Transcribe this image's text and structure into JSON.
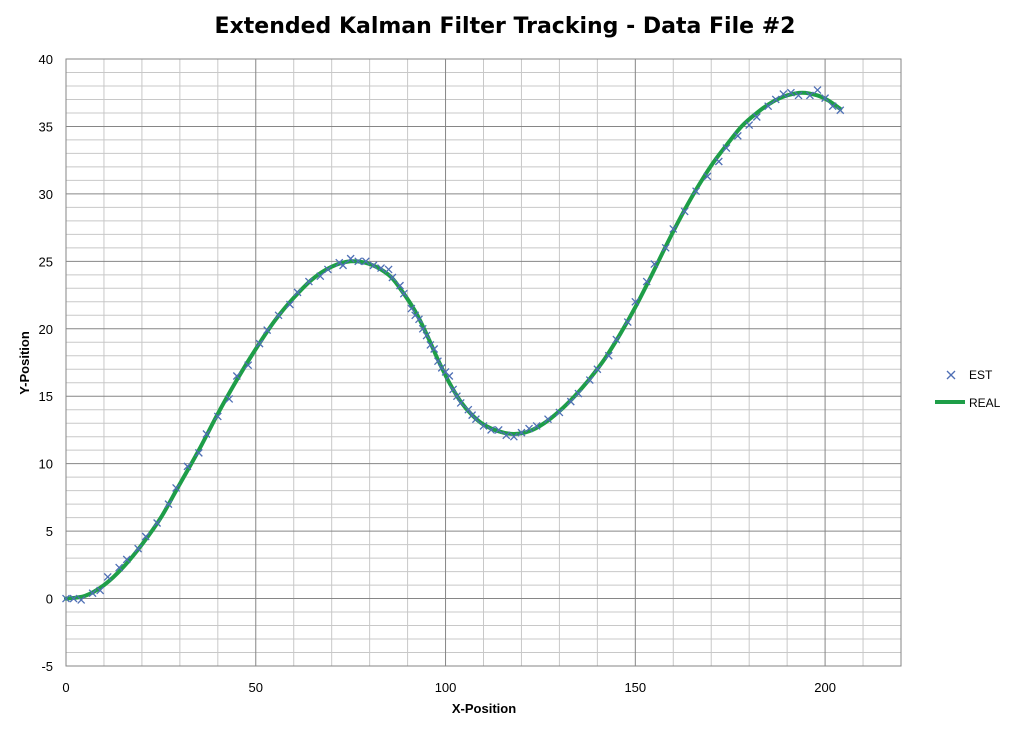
{
  "chart_data": {
    "type": "scatter",
    "title": "Extended Kalman Filter Tracking - Data File #2",
    "xlabel": "X-Position",
    "ylabel": "Y-Position",
    "xlim": [
      0,
      220
    ],
    "ylim": [
      -5,
      40
    ],
    "x_ticks": [
      "0",
      "50",
      "100",
      "150",
      "200"
    ],
    "y_ticks": [
      "-5",
      "0",
      "5",
      "10",
      "15",
      "20",
      "25",
      "30",
      "35",
      "40"
    ],
    "grid": true,
    "legend_position": "right",
    "legend": [
      "EST",
      "REAL"
    ],
    "series": [
      {
        "name": "EST",
        "marker": "x",
        "color": "#4F6FB5",
        "points": [
          [
            0,
            0
          ],
          [
            2,
            0
          ],
          [
            4,
            -0.1
          ],
          [
            7,
            0.4
          ],
          [
            9,
            0.6
          ],
          [
            11,
            1.6
          ],
          [
            14,
            2.3
          ],
          [
            16,
            2.9
          ],
          [
            19,
            3.7
          ],
          [
            21,
            4.6
          ],
          [
            24,
            5.6
          ],
          [
            27,
            7
          ],
          [
            29,
            8.2
          ],
          [
            32,
            9.8
          ],
          [
            35,
            10.8
          ],
          [
            37,
            12.2
          ],
          [
            40,
            13.5
          ],
          [
            43,
            14.8
          ],
          [
            45,
            16.5
          ],
          [
            48,
            17.3
          ],
          [
            51,
            18.9
          ],
          [
            53,
            19.9
          ],
          [
            56,
            21
          ],
          [
            59,
            21.8
          ],
          [
            61,
            22.7
          ],
          [
            64,
            23.5
          ],
          [
            67,
            23.9
          ],
          [
            69,
            24.4
          ],
          [
            72,
            24.9
          ],
          [
            73,
            24.7
          ],
          [
            75,
            25.2
          ],
          [
            77,
            25
          ],
          [
            79,
            25
          ],
          [
            81,
            24.7
          ],
          [
            83,
            24.5
          ],
          [
            85,
            24.4
          ],
          [
            86,
            23.8
          ],
          [
            88,
            23.2
          ],
          [
            89,
            22.6
          ],
          [
            91,
            21.5
          ],
          [
            92,
            21
          ],
          [
            93,
            20.7
          ],
          [
            94,
            20
          ],
          [
            95,
            19.5
          ],
          [
            96,
            18.8
          ],
          [
            97,
            18.5
          ],
          [
            98,
            17.6
          ],
          [
            99,
            17.1
          ],
          [
            100,
            16.8
          ],
          [
            101,
            16.5
          ],
          [
            102,
            15.5
          ],
          [
            103,
            15
          ],
          [
            104,
            14.5
          ],
          [
            106,
            14
          ],
          [
            107,
            13.6
          ],
          [
            108,
            13.3
          ],
          [
            110,
            12.8
          ],
          [
            112,
            12.5
          ],
          [
            114,
            12.5
          ],
          [
            116,
            12.1
          ],
          [
            118,
            12
          ],
          [
            120,
            12.3
          ],
          [
            122,
            12.6
          ],
          [
            124,
            12.8
          ],
          [
            127,
            13.3
          ],
          [
            130,
            13.8
          ],
          [
            133,
            14.6
          ],
          [
            135,
            15.2
          ],
          [
            138,
            16.2
          ],
          [
            140,
            17
          ],
          [
            143,
            18
          ],
          [
            145,
            19.2
          ],
          [
            148,
            20.5
          ],
          [
            150,
            22
          ],
          [
            153,
            23.5
          ],
          [
            155,
            24.8
          ],
          [
            158,
            26
          ],
          [
            160,
            27.4
          ],
          [
            163,
            28.7
          ],
          [
            166,
            30.2
          ],
          [
            169,
            31.3
          ],
          [
            172,
            32.4
          ],
          [
            174,
            33.4
          ],
          [
            177,
            34.3
          ],
          [
            180,
            35.1
          ],
          [
            182,
            35.7
          ],
          [
            185,
            36.5
          ],
          [
            187,
            37
          ],
          [
            189,
            37.4
          ],
          [
            191,
            37.5
          ],
          [
            193,
            37.3
          ],
          [
            196,
            37.3
          ],
          [
            198,
            37.7
          ],
          [
            200,
            37.1
          ],
          [
            202,
            36.5
          ],
          [
            204,
            36.2
          ]
        ]
      },
      {
        "name": "REAL",
        "line": true,
        "color": "#1E9E48",
        "points": [
          [
            0,
            0
          ],
          [
            5,
            0.2
          ],
          [
            10,
            1
          ],
          [
            15,
            2.3
          ],
          [
            20,
            4
          ],
          [
            25,
            6
          ],
          [
            30,
            8.5
          ],
          [
            35,
            11
          ],
          [
            40,
            13.7
          ],
          [
            45,
            16.2
          ],
          [
            50,
            18.5
          ],
          [
            55,
            20.6
          ],
          [
            60,
            22.3
          ],
          [
            65,
            23.7
          ],
          [
            70,
            24.6
          ],
          [
            75,
            25
          ],
          [
            80,
            24.8
          ],
          [
            85,
            24
          ],
          [
            88,
            23
          ],
          [
            92,
            21.3
          ],
          [
            95,
            19.6
          ],
          [
            98,
            17.7
          ],
          [
            101,
            16
          ],
          [
            104,
            14.6
          ],
          [
            107,
            13.6
          ],
          [
            110,
            12.9
          ],
          [
            114,
            12.4
          ],
          [
            118,
            12.2
          ],
          [
            122,
            12.4
          ],
          [
            126,
            13
          ],
          [
            130,
            13.9
          ],
          [
            134,
            15
          ],
          [
            138,
            16.3
          ],
          [
            142,
            17.8
          ],
          [
            146,
            19.6
          ],
          [
            150,
            21.6
          ],
          [
            154,
            23.8
          ],
          [
            158,
            26.1
          ],
          [
            162,
            28.3
          ],
          [
            166,
            30.3
          ],
          [
            170,
            32.1
          ],
          [
            174,
            33.6
          ],
          [
            178,
            35
          ],
          [
            182,
            36
          ],
          [
            186,
            36.8
          ],
          [
            190,
            37.3
          ],
          [
            194,
            37.5
          ],
          [
            198,
            37.3
          ],
          [
            201,
            36.9
          ],
          [
            204,
            36.3
          ]
        ]
      }
    ]
  }
}
